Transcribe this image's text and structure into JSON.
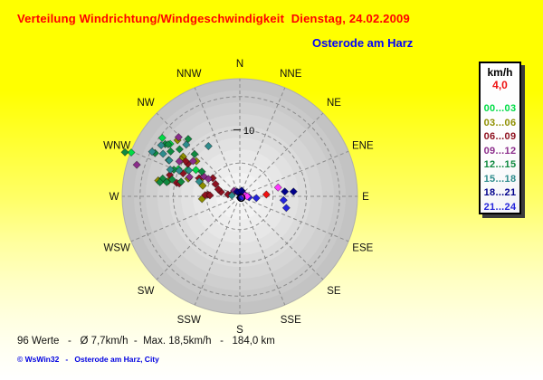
{
  "header": {
    "title": "Verteilung Windrichtung/Windgeschwindigkeit  Dienstag, 24.02.2009",
    "station": "Osterode am Harz"
  },
  "legend": {
    "unit": "km/h",
    "current_value": "4,0",
    "current_color": "#ee1111",
    "classes": [
      {
        "label": "00...03",
        "color": "#00dc46"
      },
      {
        "label": "03...06",
        "color": "#8f8f00"
      },
      {
        "label": "06...09",
        "color": "#8f1220"
      },
      {
        "label": "09...12",
        "color": "#8b2d8b"
      },
      {
        "label": "12...15",
        "color": "#108a40"
      },
      {
        "label": "15...18",
        "color": "#2e8c8c"
      },
      {
        "label": "18...21",
        "color": "#00008b"
      },
      {
        "label": "21...24",
        "color": "#2424dc"
      }
    ]
  },
  "footer": {
    "stats": "96 Werte   -   Ø 7,7km/h  -  Max. 18,5km/h   -   184,0 km",
    "copyright": "© WsWin32   -   Osterode am Harz, City"
  },
  "chart_data": {
    "type": "scatter",
    "polar": true,
    "title": "Verteilung Windrichtung/Windgeschwindigkeit",
    "date": "Dienstag, 24.02.2009",
    "station": "Osterode am Harz",
    "angle_meaning": "wind direction",
    "radius_meaning": "wind speed km/h",
    "color_meaning": "time of day (hours)",
    "compass_labels": [
      "N",
      "NNE",
      "NE",
      "ENE",
      "E",
      "ESE",
      "SE",
      "SSE",
      "S",
      "SSW",
      "SW",
      "WSW",
      "W",
      "WNW",
      "NW",
      "NNW"
    ],
    "rings_kmh": [
      5,
      10,
      15
    ],
    "ring_label": "10",
    "rmax_kmh": 17.7,
    "values_count": 96,
    "avg_kmh": 7.7,
    "max_kmh": 18.5,
    "distance_km": 184.0,
    "series": [
      {
        "name": "00...03",
        "color": "#00dc46",
        "points": [
          [
            292,
            17.6
          ],
          [
            307,
            14.6
          ],
          [
            307,
            13.1
          ],
          [
            294,
            10.1
          ],
          [
            301,
            7.7
          ],
          [
            297,
            8.8
          ]
        ]
      },
      {
        "name": "03...06",
        "color": "#8f8f00",
        "points": [
          [
            312,
            12.6
          ],
          [
            305,
            10.4
          ],
          [
            282,
            11.0
          ],
          [
            281,
            12.5
          ],
          [
            289,
            8.2
          ],
          [
            309,
            8.4
          ],
          [
            266,
            5.7
          ],
          [
            297,
            6.3
          ],
          [
            286,
            5.8
          ],
          [
            302,
            10.4
          ]
        ]
      },
      {
        "name": "06...09",
        "color": "#8f1220",
        "points": [
          [
            292,
            9.2
          ],
          [
            282,
            9.7
          ],
          [
            282,
            9.3
          ],
          [
            294,
            6.7
          ],
          [
            304,
            4.9
          ],
          [
            273,
            4.8
          ],
          [
            302,
            9.2
          ],
          [
            297,
            4.1
          ],
          [
            272,
            5.2
          ],
          [
            272,
            4.5
          ],
          [
            283,
            2.9
          ],
          [
            279,
            1.8
          ],
          [
            291,
            1.2
          ],
          [
            288,
            3.4
          ],
          [
            287,
            11.0
          ],
          [
            303,
            9.7
          ]
        ]
      },
      {
        "name": "09...12",
        "color": "#8b2d8b",
        "points": [
          [
            287,
            16.2
          ],
          [
            314,
            12.8
          ],
          [
            307,
            8.8
          ],
          [
            299,
            6.2
          ],
          [
            299,
            5.4
          ],
          [
            291,
            8.1
          ],
          [
            315,
            1.2
          ],
          [
            300,
            10.5
          ]
        ]
      },
      {
        "name": "12...15",
        "color": "#108a40",
        "points": [
          [
            291,
            18.5
          ],
          [
            297,
            14.3
          ],
          [
            305,
            13.7
          ],
          [
            306,
            13.3
          ],
          [
            303,
            12.4
          ],
          [
            297,
            12.0
          ],
          [
            308,
            11.5
          ],
          [
            292,
            10.7
          ],
          [
            283,
            11.9
          ],
          [
            284,
            10.5
          ],
          [
            284,
            9.1
          ],
          [
            280,
            12.2
          ],
          [
            318,
            11.6
          ],
          [
            313,
            9.3
          ],
          [
            303,
            6.8
          ],
          [
            281,
            11.2
          ]
        ]
      },
      {
        "name": "15...18",
        "color": "#2e8c8c",
        "points": [
          [
            297,
            14.8
          ],
          [
            303,
            14.1
          ],
          [
            299,
            13.2
          ],
          [
            291,
            11.2
          ],
          [
            297,
            8.6
          ],
          [
            328,
            8.9
          ],
          [
            314,
            11.2
          ],
          [
            290,
            6.5
          ],
          [
            276,
            1.2
          ],
          [
            293,
            9.9
          ],
          [
            297,
            11.9
          ]
        ]
      },
      {
        "name": "18...21",
        "color": "#00008b",
        "points": [
          [
            329,
            0.8
          ],
          [
            346,
            0.6
          ],
          [
            27,
            0.3
          ],
          [
            18,
            0.9
          ],
          [
            53,
            0.7
          ],
          [
            180,
            0.2
          ],
          [
            84,
            6.8
          ],
          [
            85,
            8.1
          ]
        ]
      },
      {
        "name": "21...24",
        "color": "#2424dc",
        "points": [
          [
            108,
            0.4
          ],
          [
            96,
            1.4
          ],
          [
            96,
            2.5
          ],
          [
            95,
            6.6
          ],
          [
            104,
            7.2
          ]
        ]
      },
      {
        "name": "highlight",
        "color": "#ff38ff",
        "points": [
          [
            81,
            0.8
          ],
          [
            90,
            1.1
          ],
          [
            77,
            5.9
          ]
        ]
      },
      {
        "name": "current",
        "color": "#f01010",
        "points": [
          [
            86,
            4.0
          ]
        ]
      }
    ]
  }
}
